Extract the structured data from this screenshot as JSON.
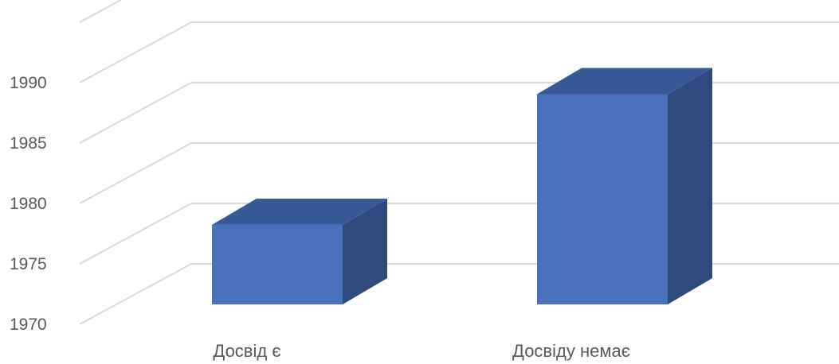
{
  "chart_data": {
    "type": "bar",
    "style": "3d-column",
    "categories": [
      "Досвід є",
      "Досвіду немає"
    ],
    "values": [
      1977,
      1988.5
    ],
    "ylim": [
      1970,
      1995
    ],
    "yticks": [
      1970,
      1975,
      1980,
      1985,
      1990
    ],
    "grid": true,
    "legend": "none",
    "colors": {
      "front": "#4a71bc",
      "top": "#375a96",
      "side": "#2f4a7d",
      "grid": "#d9d9d9",
      "text": "#595959"
    }
  }
}
